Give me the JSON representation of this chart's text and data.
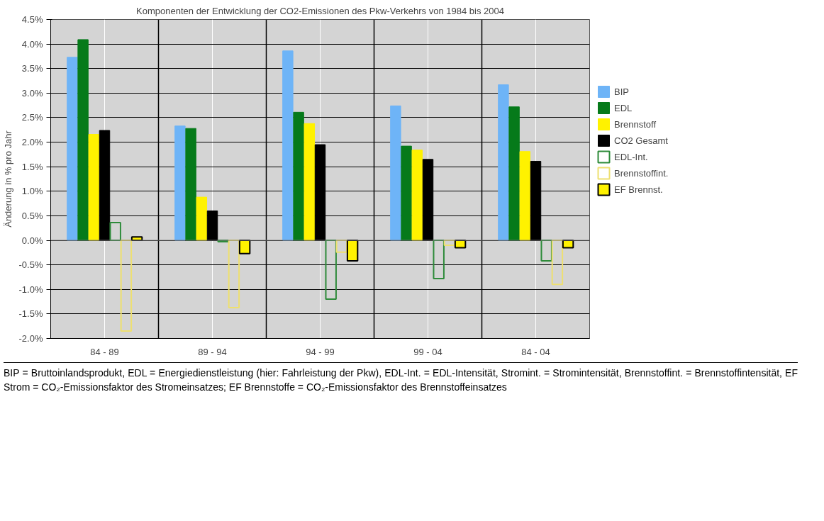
{
  "chart_data": {
    "type": "bar",
    "title": "Komponenten der Entwicklung der CO2-Emissionen des Pkw-Verkehrs von 1984 bis 2004",
    "ylabel": "Änderung in % pro Jahr",
    "categories": [
      "84 - 89",
      "89 - 94",
      "94 - 99",
      "99 - 04",
      "84 - 04"
    ],
    "series": [
      {
        "name": "BIP",
        "color": "#6eb4f7",
        "values": [
          3.73,
          2.33,
          3.86,
          2.74,
          3.17
        ]
      },
      {
        "name": "EDL",
        "color": "#067a1a",
        "values": [
          4.09,
          2.28,
          2.61,
          1.92,
          2.72
        ]
      },
      {
        "name": "Brennstoff",
        "color": "#fff200",
        "values": [
          2.16,
          0.88,
          2.38,
          1.84,
          1.81
        ]
      },
      {
        "name": "CO2 Gesamt",
        "color": "#000000",
        "values": [
          2.24,
          0.6,
          1.95,
          1.65,
          1.61
        ]
      },
      {
        "name": "EDL-Int.",
        "color": "#2e8b3a",
        "values": [
          0.36,
          -0.03,
          -1.2,
          -0.78,
          -0.42
        ]
      },
      {
        "name": "Brennstoffint.",
        "color": "#eee070",
        "values": [
          -1.85,
          -1.37,
          -0.24,
          -0.1,
          -0.9
        ]
      },
      {
        "name": "EF Brennst.",
        "color": "#fff200",
        "values": [
          0.07,
          -0.27,
          -0.42,
          -0.15,
          -0.15
        ]
      }
    ],
    "ylim": [
      -2.0,
      4.5
    ],
    "yticks": [
      {
        "value": -2.0,
        "label": "-2.0%"
      },
      {
        "value": -1.5,
        "label": "-1.5%"
      },
      {
        "value": -1.0,
        "label": "-1.0%"
      },
      {
        "value": -0.5,
        "label": "-0.5%"
      },
      {
        "value": 0.0,
        "label": "0.0%"
      },
      {
        "value": 0.5,
        "label": "0.5%"
      },
      {
        "value": 1.0,
        "label": "1.0%"
      },
      {
        "value": 1.5,
        "label": "1.5%"
      },
      {
        "value": 2.0,
        "label": "2.0%"
      },
      {
        "value": 2.5,
        "label": "2.5%"
      },
      {
        "value": 3.0,
        "label": "3.0%"
      },
      {
        "value": 3.5,
        "label": "3.5%"
      },
      {
        "value": 4.0,
        "label": "4.0%"
      },
      {
        "value": 4.5,
        "label": "4.5%"
      }
    ],
    "grid": true,
    "legend": "right",
    "annotations": [
      "BIP = Bruttoinlandsprodukt, EDL = Energiedienstleistung (hier: Fahrleistung der Pkw), EDL-Int. = EDL-Intensität, Stromint. = Stromintensität, Brennstoffint. = Brennstoffintensität, EF Strom = CO₂-Emissionsfaktor des Stromeinsatzes; EF Brennstoffe = CO₂-Emissionsfaktor des Brennstoffeinsatzes"
    ]
  }
}
